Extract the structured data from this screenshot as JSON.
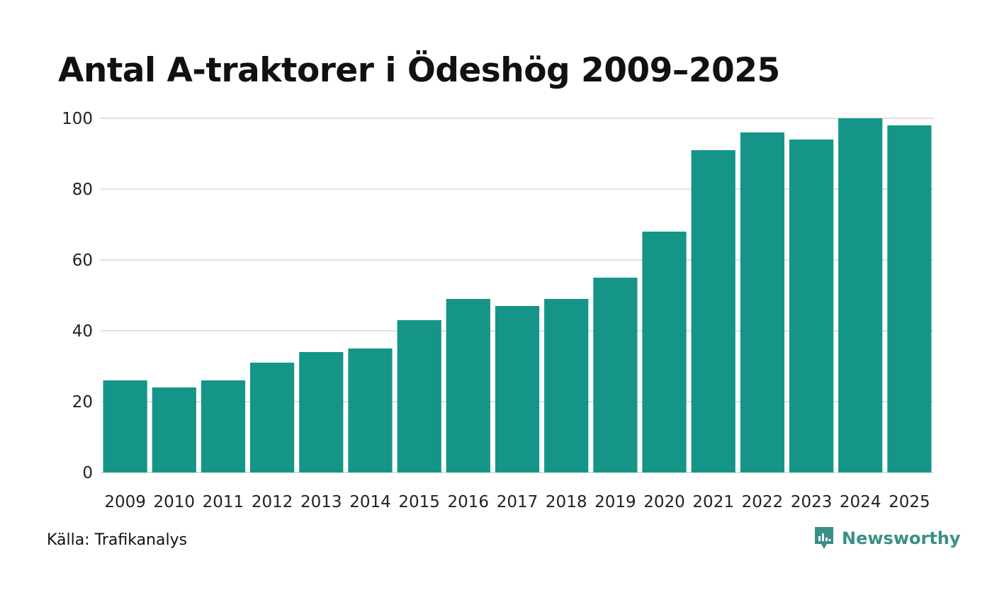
{
  "title": "Antal A-traktorer i Ödeshög 2009–2025",
  "source": "Källa: Trafikanalys",
  "brand": {
    "name": "Newsworthy",
    "icon": "newsworthy-logo-icon"
  },
  "colors": {
    "bar": "#149588",
    "grid": "#e0e0e0",
    "brand": "#3a8f86"
  },
  "chart_data": {
    "type": "bar",
    "title": "Antal A-traktorer i Ödeshög 2009–2025",
    "xlabel": "",
    "ylabel": "",
    "categories": [
      "2009",
      "2010",
      "2011",
      "2012",
      "2013",
      "2014",
      "2015",
      "2016",
      "2017",
      "2018",
      "2019",
      "2020",
      "2021",
      "2022",
      "2023",
      "2024",
      "2025"
    ],
    "values": [
      26,
      24,
      26,
      31,
      34,
      35,
      43,
      49,
      47,
      49,
      55,
      68,
      91,
      96,
      94,
      100,
      98
    ],
    "ylim": [
      0,
      100
    ],
    "yticks": [
      0,
      20,
      40,
      60,
      80,
      100
    ],
    "grid": true,
    "legend": "none"
  }
}
